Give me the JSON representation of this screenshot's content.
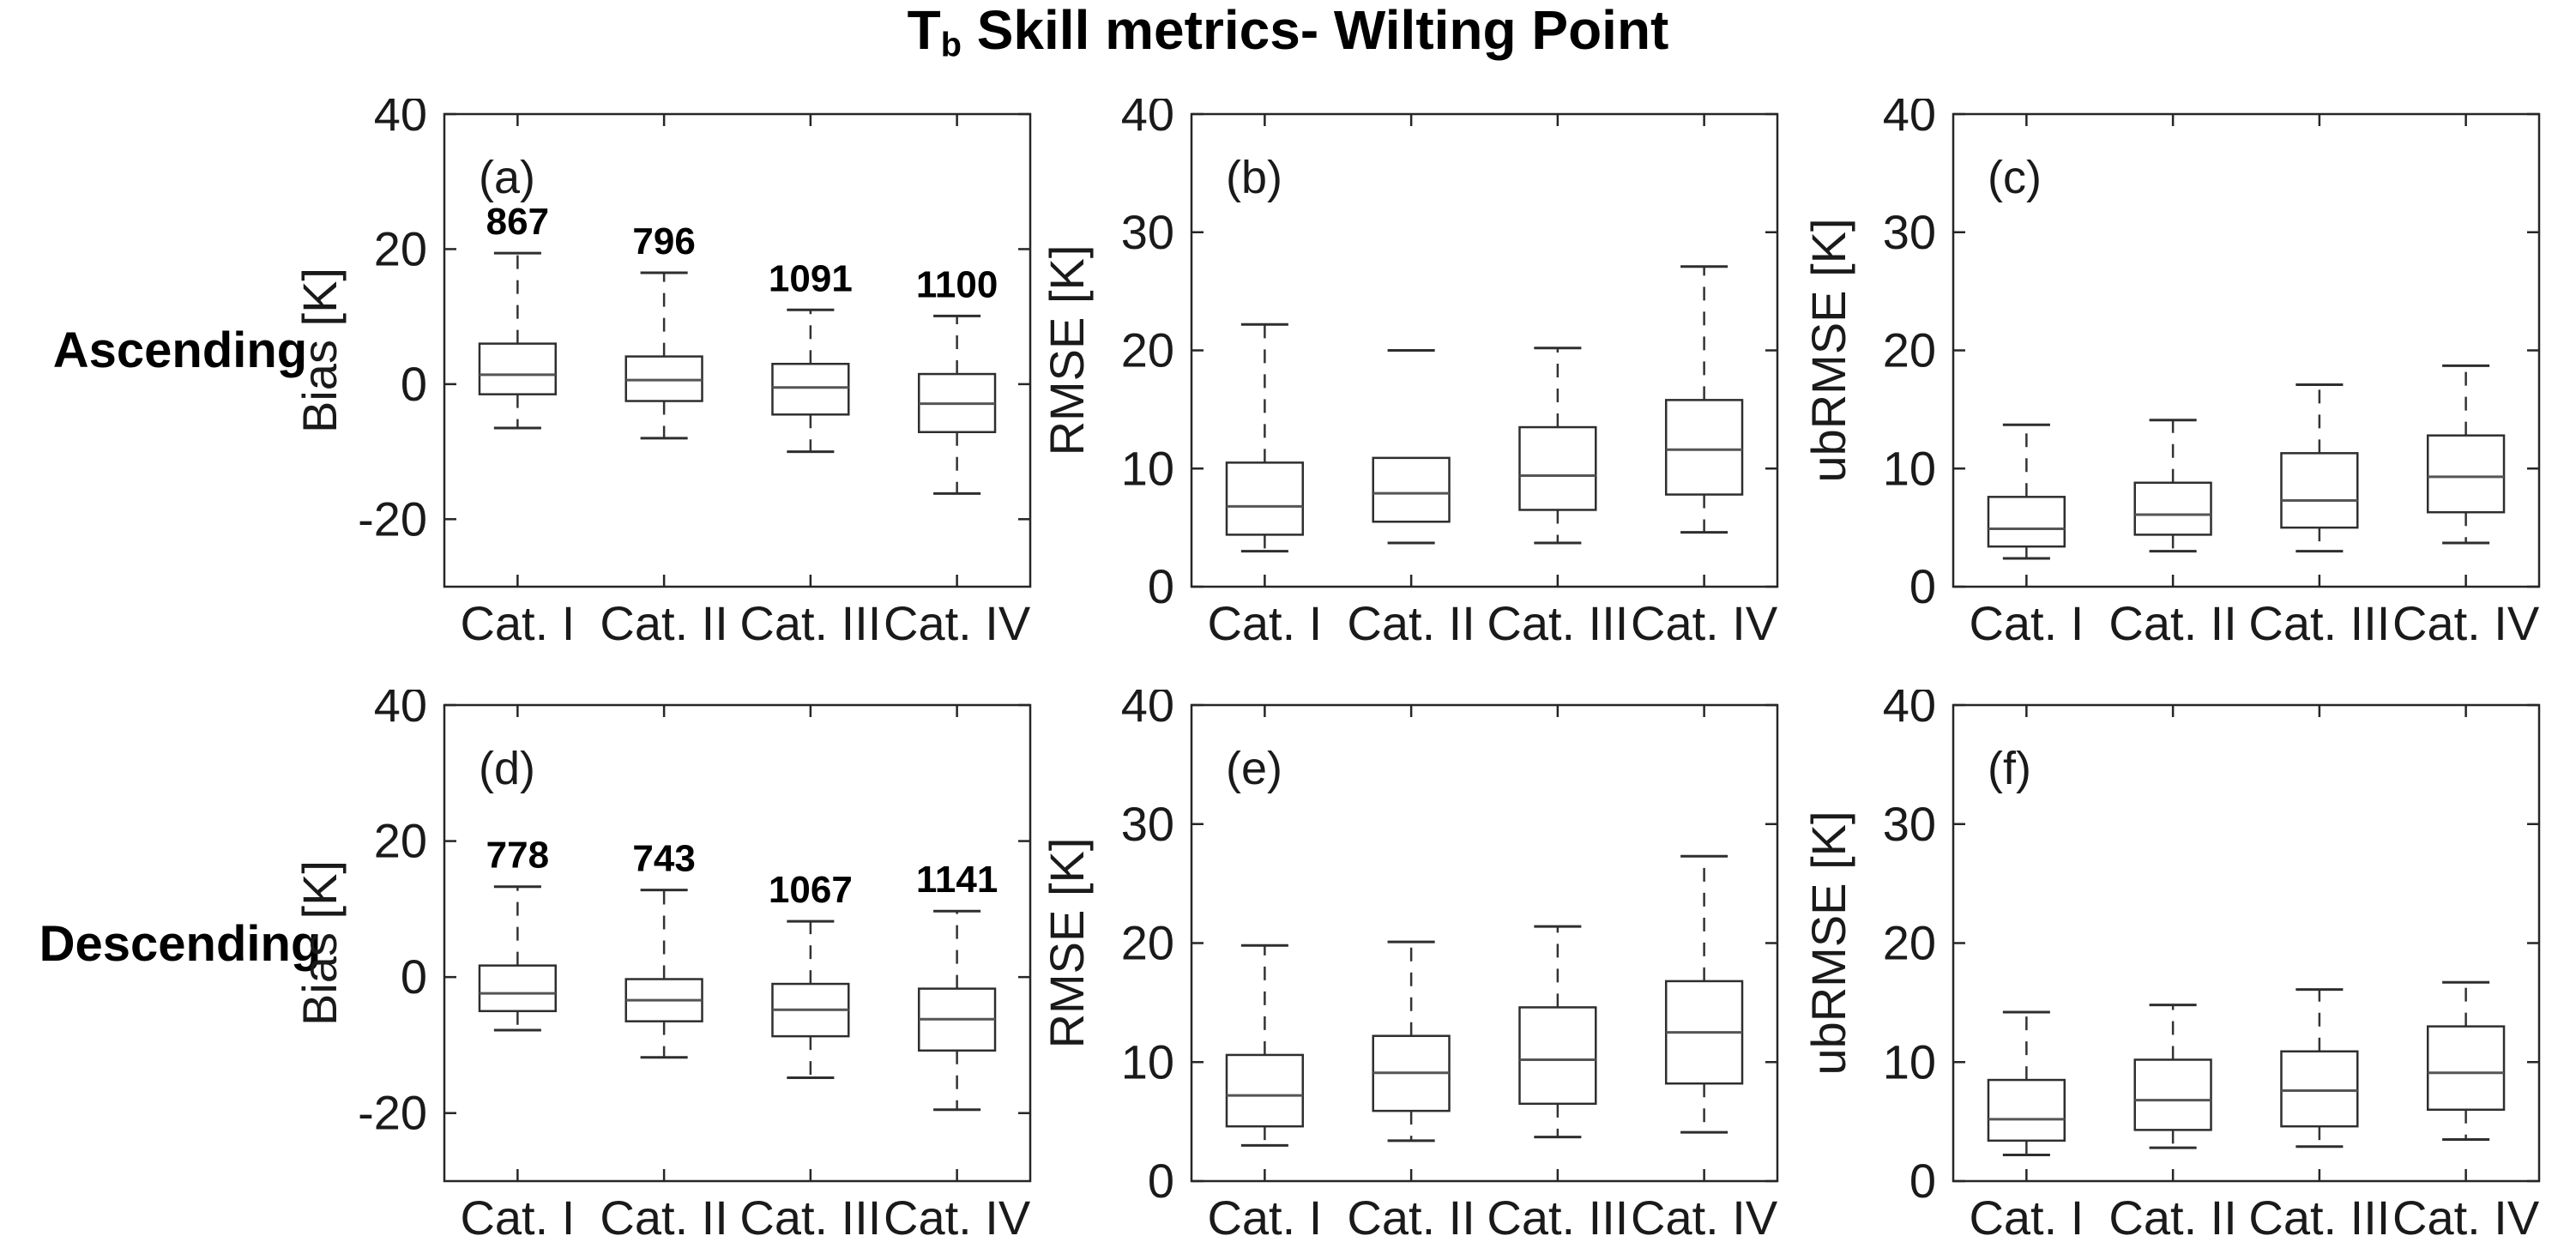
{
  "title": {
    "prefix": "T",
    "subscript": "b",
    "rest": " Skill metrics- Wilting Point"
  },
  "row_labels": [
    "Ascending",
    "Descending"
  ],
  "categories": [
    "Cat. I",
    "Cat. II",
    "Cat. III",
    "Cat. IV"
  ],
  "colors": {
    "background": "#ffffff",
    "axis": "#262626",
    "box_stroke": "#2e2e2e",
    "median": "#555555",
    "whisker": "#333333",
    "text": "#1a1a1a",
    "count_text": "#000000"
  },
  "chart_data": [
    {
      "type": "box",
      "panel_label": "(a)",
      "group": "Ascending",
      "ylabel": "Bias [K]",
      "ylim": [
        -30,
        40
      ],
      "yticks": [
        -20,
        0,
        20,
        40
      ],
      "grid": false,
      "categories": [
        "Cat. I",
        "Cat. II",
        "Cat. III",
        "Cat. IV"
      ],
      "counts": [
        867,
        796,
        1091,
        1100
      ],
      "boxes": [
        {
          "category": "Cat. I",
          "whisker_low": -6.5,
          "q1": -1.5,
          "median": 1.4,
          "q3": 6.0,
          "whisker_high": 19.4
        },
        {
          "category": "Cat. II",
          "whisker_low": -8.0,
          "q1": -2.5,
          "median": 0.6,
          "q3": 4.1,
          "whisker_high": 16.5
        },
        {
          "category": "Cat. III",
          "whisker_low": -10.0,
          "q1": -4.5,
          "median": -0.5,
          "q3": 3.0,
          "whisker_high": 11.0
        },
        {
          "category": "Cat. IV",
          "whisker_low": -16.2,
          "q1": -7.1,
          "median": -2.9,
          "q3": 1.5,
          "whisker_high": 10.1
        }
      ]
    },
    {
      "type": "box",
      "panel_label": "(b)",
      "group": "Ascending",
      "ylabel": "RMSE [K]",
      "ylim": [
        0,
        40
      ],
      "yticks": [
        0,
        10,
        20,
        30,
        40
      ],
      "grid": false,
      "categories": [
        "Cat. I",
        "Cat. II",
        "Cat. III",
        "Cat. IV"
      ],
      "counts": null,
      "boxes": [
        {
          "category": "Cat. I",
          "whisker_low": 3.0,
          "q1": 4.4,
          "median": 6.8,
          "q3": 10.5,
          "whisker_high": 22.2
        },
        {
          "category": "Cat. II",
          "whisker_low": 3.7,
          "q1": 5.5,
          "median": 7.9,
          "q3": 10.9,
          "whisker_high": 20.0,
          "whisker_line": false
        },
        {
          "category": "Cat. III",
          "whisker_low": 3.7,
          "q1": 6.5,
          "median": 9.4,
          "q3": 13.5,
          "whisker_high": 20.2
        },
        {
          "category": "Cat. IV",
          "whisker_low": 4.6,
          "q1": 7.8,
          "median": 11.6,
          "q3": 15.8,
          "whisker_high": 27.1
        }
      ]
    },
    {
      "type": "box",
      "panel_label": "(c)",
      "group": "Ascending",
      "ylabel": "ubRMSE [K]",
      "ylim": [
        0,
        40
      ],
      "yticks": [
        0,
        10,
        20,
        30,
        40
      ],
      "grid": false,
      "categories": [
        "Cat. I",
        "Cat. II",
        "Cat. III",
        "Cat. IV"
      ],
      "counts": null,
      "boxes": [
        {
          "category": "Cat. I",
          "whisker_low": 2.4,
          "q1": 3.4,
          "median": 4.9,
          "q3": 7.6,
          "whisker_high": 13.7
        },
        {
          "category": "Cat. II",
          "whisker_low": 3.0,
          "q1": 4.4,
          "median": 6.1,
          "q3": 8.8,
          "whisker_high": 14.1
        },
        {
          "category": "Cat. III",
          "whisker_low": 3.0,
          "q1": 5.0,
          "median": 7.3,
          "q3": 11.3,
          "whisker_high": 17.1
        },
        {
          "category": "Cat. IV",
          "whisker_low": 3.7,
          "q1": 6.3,
          "median": 9.3,
          "q3": 12.8,
          "whisker_high": 18.7
        }
      ]
    },
    {
      "type": "box",
      "panel_label": "(d)",
      "group": "Descending",
      "ylabel": "Bias [K]",
      "ylim": [
        -30,
        40
      ],
      "yticks": [
        -20,
        0,
        20,
        40
      ],
      "grid": false,
      "categories": [
        "Cat. I",
        "Cat. II",
        "Cat. III",
        "Cat. IV"
      ],
      "counts": [
        778,
        743,
        1067,
        1141
      ],
      "boxes": [
        {
          "category": "Cat. I",
          "whisker_low": -7.8,
          "q1": -5.0,
          "median": -2.4,
          "q3": 1.7,
          "whisker_high": 13.3
        },
        {
          "category": "Cat. II",
          "whisker_low": -11.8,
          "q1": -6.5,
          "median": -3.4,
          "q3": -0.3,
          "whisker_high": 12.8
        },
        {
          "category": "Cat. III",
          "whisker_low": -14.8,
          "q1": -8.7,
          "median": -4.8,
          "q3": -1.0,
          "whisker_high": 8.2
        },
        {
          "category": "Cat. IV",
          "whisker_low": -19.5,
          "q1": -10.8,
          "median": -6.2,
          "q3": -1.7,
          "whisker_high": 9.7
        }
      ]
    },
    {
      "type": "box",
      "panel_label": "(e)",
      "group": "Descending",
      "ylabel": "RMSE [K]",
      "ylim": [
        0,
        40
      ],
      "yticks": [
        0,
        10,
        20,
        30,
        40
      ],
      "grid": false,
      "categories": [
        "Cat. I",
        "Cat. II",
        "Cat. III",
        "Cat. IV"
      ],
      "counts": null,
      "boxes": [
        {
          "category": "Cat. I",
          "whisker_low": 3.0,
          "q1": 4.6,
          "median": 7.2,
          "q3": 10.6,
          "whisker_high": 19.8
        },
        {
          "category": "Cat. II",
          "whisker_low": 3.4,
          "q1": 5.9,
          "median": 9.1,
          "q3": 12.2,
          "whisker_high": 20.1
        },
        {
          "category": "Cat. III",
          "whisker_low": 3.7,
          "q1": 6.5,
          "median": 10.2,
          "q3": 14.6,
          "whisker_high": 21.4
        },
        {
          "category": "Cat. IV",
          "whisker_low": 4.1,
          "q1": 8.2,
          "median": 12.5,
          "q3": 16.8,
          "whisker_high": 27.3
        }
      ]
    },
    {
      "type": "box",
      "panel_label": "(f)",
      "group": "Descending",
      "ylabel": "ubRMSE [K]",
      "ylim": [
        0,
        40
      ],
      "yticks": [
        0,
        10,
        20,
        30,
        40
      ],
      "grid": false,
      "categories": [
        "Cat. I",
        "Cat. II",
        "Cat. III",
        "Cat. IV"
      ],
      "counts": null,
      "boxes": [
        {
          "category": "Cat. I",
          "whisker_low": 2.2,
          "q1": 3.4,
          "median": 5.2,
          "q3": 8.5,
          "whisker_high": 14.2
        },
        {
          "category": "Cat. II",
          "whisker_low": 2.8,
          "q1": 4.3,
          "median": 6.8,
          "q3": 10.2,
          "whisker_high": 14.8
        },
        {
          "category": "Cat. III",
          "whisker_low": 2.9,
          "q1": 4.6,
          "median": 7.6,
          "q3": 10.9,
          "whisker_high": 16.1
        },
        {
          "category": "Cat. IV",
          "whisker_low": 3.5,
          "q1": 6.0,
          "median": 9.1,
          "q3": 13.0,
          "whisker_high": 16.7
        }
      ]
    }
  ]
}
